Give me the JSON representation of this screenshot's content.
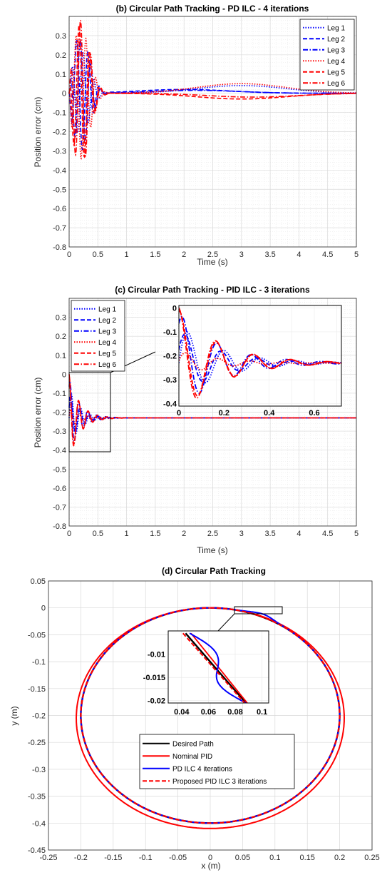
{
  "chart_data": [
    {
      "type": "line",
      "title": "(b) Circular Path Tracking - PD ILC - 4 iterations",
      "xlabel": "Time (s)",
      "ylabel": "Position error (cm)",
      "xlim": [
        0,
        5
      ],
      "ylim": [
        -0.8,
        0.4
      ],
      "xticks": [
        "0",
        "0.5",
        "1",
        "1.5",
        "2",
        "2.5",
        "3",
        "3.5",
        "4",
        "4.5",
        "5"
      ],
      "yticks": [
        "0.3",
        "0.2",
        "0.1",
        "0",
        "-0.1",
        "-0.2",
        "-0.3",
        "-0.4",
        "-0.5",
        "-0.6",
        "-0.7",
        "-0.8"
      ],
      "grid": true,
      "legend_position": "top-right",
      "series": [
        {
          "name": "Leg 1",
          "color": "#0000ff",
          "dash": "dotted",
          "amp": 0.22,
          "freq": 5.2,
          "phase": 0.0,
          "slow_amp": 0.04,
          "slow_center": 3.0
        },
        {
          "name": "Leg 2",
          "color": "#0000ff",
          "dash": "dashed",
          "amp": -0.3,
          "freq": 5.0,
          "phase": 0.6,
          "slow_amp": 0.02,
          "slow_center": 2.0
        },
        {
          "name": "Leg 3",
          "color": "#0000ff",
          "dash": "dashdot",
          "amp": 0.28,
          "freq": 5.5,
          "phase": 1.2,
          "slow_amp": 0.015,
          "slow_center": 2.2
        },
        {
          "name": "Leg 4",
          "color": "#ff0000",
          "dash": "dotted",
          "amp": -0.34,
          "freq": 5.8,
          "phase": 0.3,
          "slow_amp": 0.05,
          "slow_center": 3.0
        },
        {
          "name": "Leg 5",
          "color": "#ff0000",
          "dash": "dashed",
          "amp": 0.36,
          "freq": 5.4,
          "phase": 2.0,
          "slow_amp": -0.03,
          "slow_center": 3.0
        },
        {
          "name": "Leg 6",
          "color": "#ff0000",
          "dash": "dashdot",
          "amp": 0.38,
          "freq": 5.6,
          "phase": 0.9,
          "slow_amp": -0.02,
          "slow_center": 3.2
        }
      ]
    },
    {
      "type": "line",
      "title": "(c) Circular Path Tracking - PID ILC - 3 iterations",
      "xlabel": "Time (s)",
      "ylabel": "Position error (cm)",
      "xlim": [
        0,
        5
      ],
      "ylim": [
        -0.8,
        0.4
      ],
      "xticks": [
        "0",
        "0.5",
        "1",
        "1.5",
        "2",
        "2.5",
        "3",
        "3.5",
        "4",
        "4.5",
        "5"
      ],
      "yticks": [
        "0.3",
        "0.2",
        "0.1",
        "0",
        "-0.1",
        "-0.2",
        "-0.3",
        "-0.4",
        "-0.5",
        "-0.6",
        "-0.7",
        "-0.8"
      ],
      "grid": true,
      "legend_position": "top-left",
      "steady_value": -0.23,
      "inset": {
        "xlim": [
          0,
          0.72
        ],
        "ylim": [
          -0.41,
          0.01
        ],
        "xticks": [
          "0",
          "0.2",
          "0.4",
          "0.6"
        ],
        "yticks": [
          "0",
          "-0.1",
          "-0.2",
          "-0.3",
          "-0.4"
        ]
      },
      "series": [
        {
          "name": "Leg 1",
          "color": "#0000ff",
          "dash": "dotted",
          "amp": 0.16,
          "freq": 6.2,
          "phase": 0.0
        },
        {
          "name": "Leg 2",
          "color": "#0000ff",
          "dash": "dashed",
          "amp": 0.14,
          "freq": 6.3,
          "phase": 0.4
        },
        {
          "name": "Leg 3",
          "color": "#0000ff",
          "dash": "dashdot",
          "amp": 0.21,
          "freq": 6.5,
          "phase": 0.9
        },
        {
          "name": "Leg 4",
          "color": "#ff0000",
          "dash": "dotted",
          "amp": 0.05,
          "freq": 7.0,
          "phase": 0.2
        },
        {
          "name": "Leg 5",
          "color": "#ff0000",
          "dash": "dashed",
          "amp": 0.22,
          "freq": 6.1,
          "phase": 1.4
        },
        {
          "name": "Leg 6",
          "color": "#ff0000",
          "dash": "dashdot",
          "amp": 0.23,
          "freq": 6.0,
          "phase": 1.6
        }
      ]
    },
    {
      "type": "line",
      "title": "(d) Circular Path Tracking",
      "xlabel": "x (m)",
      "ylabel": "y (m)",
      "xlim": [
        -0.25,
        0.25
      ],
      "ylim": [
        -0.45,
        0.05
      ],
      "xticks": [
        "-0.25",
        "-0.2",
        "-0.15",
        "-0.1",
        "-0.05",
        "0",
        "0.05",
        "0.1",
        "0.15",
        "0.2",
        "0.25"
      ],
      "yticks": [
        "0.05",
        "0",
        "-0.05",
        "-0.1",
        "-0.15",
        "-0.2",
        "-0.25",
        "-0.3",
        "-0.35",
        "-0.4",
        "-0.45"
      ],
      "grid": true,
      "legend_position": "bottom-center",
      "inset": {
        "xlim": [
          0.03,
          0.105
        ],
        "ylim": [
          -0.0205,
          -0.005
        ],
        "xticks": [
          "0.04",
          "0.06",
          "0.08",
          "0.1"
        ],
        "yticks": [
          "-0.01",
          "-0.015",
          "-0.02"
        ]
      },
      "series": [
        {
          "name": "Desired Path",
          "color": "#000000",
          "dash": "solid",
          "center": [
            0,
            -0.2
          ],
          "radius": 0.2
        },
        {
          "name": "Nominal PID",
          "color": "#ff0000",
          "dash": "solid",
          "center": [
            0,
            -0.205
          ],
          "radius_x": 0.207,
          "radius_y": 0.205
        },
        {
          "name": "PD ILC 4 iterations",
          "color": "#0000ff",
          "dash": "solid",
          "center": [
            0,
            -0.2
          ],
          "radius": 0.2
        },
        {
          "name": "Proposed PID ILC 3 iterations",
          "color": "#ff0000",
          "dash": "dashed",
          "center": [
            0,
            -0.2
          ],
          "radius": 0.2
        }
      ]
    }
  ]
}
